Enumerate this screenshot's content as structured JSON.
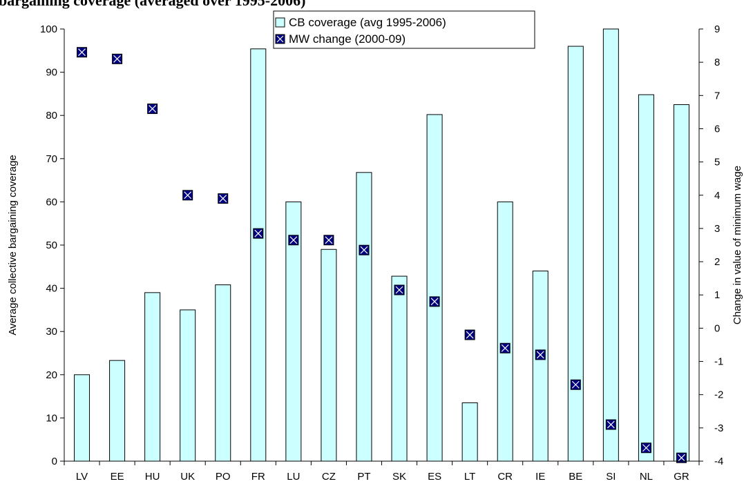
{
  "chart_data": {
    "type": "bar",
    "title": "bargaining coverage (averaged over 1995-2006)",
    "categories": [
      "LV",
      "EE",
      "HU",
      "UK",
      "PO",
      "FR",
      "LU",
      "CZ",
      "PT",
      "SK",
      "ES",
      "LT",
      "CR",
      "IE",
      "BE",
      "SI",
      "NL",
      "GR"
    ],
    "series": [
      {
        "name": "CB coverage (avg 1995-2006)",
        "type": "bar",
        "axis": "left",
        "color": "#ccffff",
        "values": [
          20,
          23.3,
          39,
          35,
          40.8,
          95.4,
          60,
          49,
          66.8,
          42.8,
          80.2,
          13.5,
          60,
          44,
          96,
          100,
          84.8,
          82.5
        ]
      },
      {
        "name": "MW change (2000-09)",
        "type": "scatter",
        "axis": "right",
        "marker": "box-x",
        "color": "#000080",
        "values": [
          8.3,
          8.1,
          6.6,
          4.0,
          3.9,
          2.85,
          2.65,
          2.65,
          2.35,
          1.15,
          0.8,
          -0.2,
          -0.6,
          -0.8,
          -1.7,
          -2.9,
          -3.6,
          -3.9
        ]
      }
    ],
    "y_left": {
      "label": "Average collective bargaining coverage",
      "range": [
        0,
        100
      ],
      "ticks": [
        0,
        10,
        20,
        30,
        40,
        50,
        60,
        70,
        80,
        90,
        100
      ]
    },
    "y_right": {
      "label": "Change in value of minimum wage",
      "range": [
        -4,
        9
      ],
      "ticks": [
        -4,
        -3,
        -2,
        -1,
        0,
        1,
        2,
        3,
        4,
        5,
        6,
        7,
        8,
        9
      ]
    },
    "grid": false,
    "legend_position": "top-center",
    "colors": {
      "bar_fill": "#ccffff",
      "bar_stroke": "#000000",
      "marker_fill": "#000080",
      "marker_cross": "#ffffff"
    }
  }
}
